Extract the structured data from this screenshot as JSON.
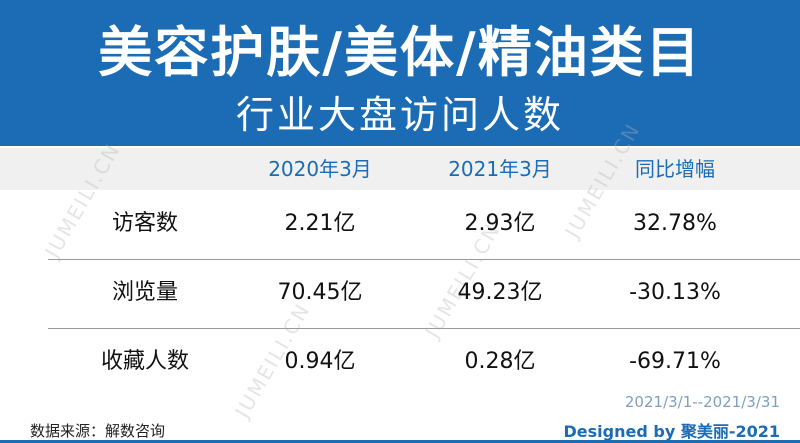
{
  "header": {
    "title": "美容护肤/美体/精油类目",
    "subtitle": "行业大盘访问人数"
  },
  "table": {
    "columns": [
      "2020年3月",
      "2021年3月",
      "同比增幅"
    ],
    "rows": [
      [
        "访客数",
        "2.21亿",
        "2.93亿",
        "32.78%"
      ],
      [
        "浏览量",
        "70.45亿",
        "49.23亿",
        "-30.13%"
      ],
      [
        "收藏人数",
        "0.94亿",
        "0.28亿",
        "-69.71%"
      ]
    ]
  },
  "period": "2021/3/1--2021/3/31",
  "watermark": "JUMEILI.CN",
  "footer": {
    "source": "数据来源：解数咨询",
    "designed_by": "Designed by 聚美丽-2021"
  }
}
